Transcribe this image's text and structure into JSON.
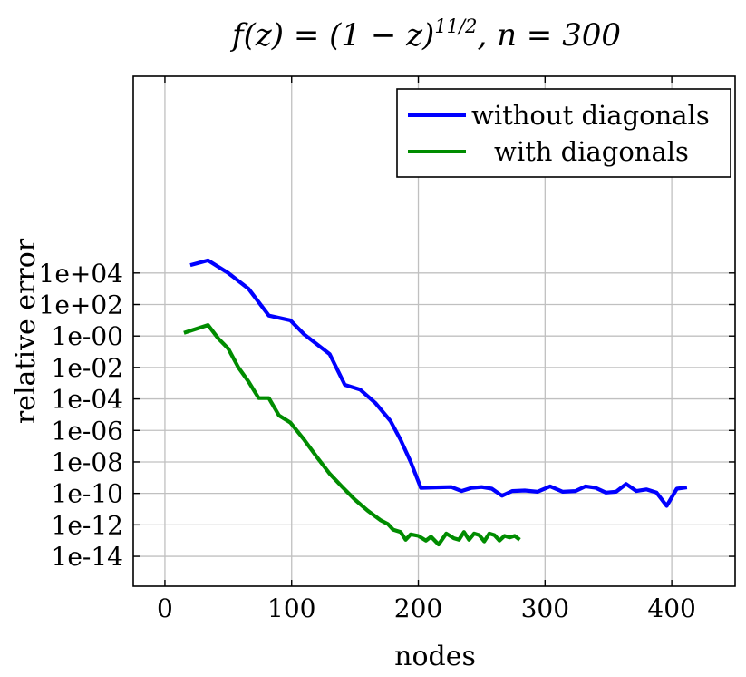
{
  "chart_data": {
    "type": "line",
    "title": "f(z) = (1 − z)^{11/2}, n = 300",
    "title_parts": {
      "lhs": "f(z) = (1 − z)",
      "exponent": "11/2",
      "rhs": ", n = 300"
    },
    "xlabel": "nodes",
    "ylabel": "relative error",
    "xlim": [
      -25,
      450
    ],
    "ylim_log10": [
      -15.9,
      16.5
    ],
    "yscale": "log",
    "grid": true,
    "legend_position": "top-right",
    "x_ticks": [
      0,
      100,
      200,
      300,
      400
    ],
    "x_tick_labels": [
      "0",
      "100",
      "200",
      "300",
      "400"
    ],
    "y_ticks_log10": [
      4,
      2,
      0,
      -2,
      -4,
      -6,
      -8,
      -10,
      -12,
      -14
    ],
    "y_tick_labels": [
      "1e+04",
      "1e+02",
      "1e-00",
      "1e-02",
      "1e-04",
      "1e-06",
      "1e-08",
      "1e-10",
      "1e-12",
      "1e-14"
    ],
    "series": [
      {
        "name": "without diagonals",
        "color": "#0000ff",
        "x": [
          20,
          34,
          50,
          66,
          82,
          99,
          110,
          130,
          142,
          154,
          166,
          178,
          186,
          194,
          202,
          214,
          226,
          234,
          242,
          250,
          258,
          266,
          274,
          284,
          294,
          304,
          314,
          324,
          332,
          340,
          348,
          356,
          364,
          372,
          380,
          388,
          396,
          404,
          412
        ],
        "y_log10": [
          4.5,
          4.8,
          4.0,
          3.0,
          1.3,
          1.0,
          0.1,
          -1.15,
          -3.1,
          -3.4,
          -4.25,
          -5.4,
          -6.6,
          -8.0,
          -9.65,
          -9.62,
          -9.6,
          -9.85,
          -9.65,
          -9.6,
          -9.7,
          -10.15,
          -9.85,
          -9.82,
          -9.9,
          -9.55,
          -9.9,
          -9.85,
          -9.55,
          -9.65,
          -9.95,
          -9.9,
          -9.4,
          -9.85,
          -9.75,
          -9.95,
          -10.8,
          -9.7,
          -9.62
        ]
      },
      {
        "name": "with diagonals",
        "color": "#008c00",
        "x": [
          15,
          34,
          42,
          50,
          58,
          66,
          74,
          82,
          90,
          99,
          110,
          120,
          130,
          140,
          150,
          160,
          170,
          176,
          180,
          186,
          190,
          194,
          200,
          206,
          210,
          216,
          222,
          228,
          232,
          236,
          240,
          244,
          248,
          252,
          256,
          260,
          264,
          268,
          272,
          276,
          280
        ],
        "y_log10": [
          0.2,
          0.7,
          -0.15,
          -0.8,
          -2.0,
          -2.9,
          -3.95,
          -3.95,
          -5.05,
          -5.5,
          -6.6,
          -7.7,
          -8.75,
          -9.6,
          -10.4,
          -11.1,
          -11.7,
          -11.95,
          -12.3,
          -12.45,
          -12.95,
          -12.6,
          -12.7,
          -13.0,
          -12.75,
          -13.25,
          -12.55,
          -12.85,
          -12.95,
          -12.45,
          -12.95,
          -12.55,
          -12.65,
          -13.05,
          -12.55,
          -12.65,
          -13.0,
          -12.7,
          -12.8,
          -12.7,
          -12.95
        ]
      }
    ]
  }
}
